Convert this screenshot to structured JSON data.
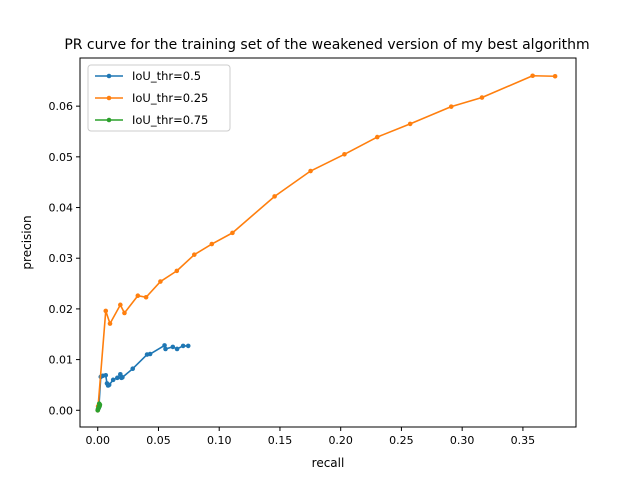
{
  "chart_data": {
    "type": "line",
    "title": "PR curve for the training set of the weakened version of my best algorithm",
    "xlabel": "recall",
    "ylabel": "precision",
    "xlim": [
      -0.0146,
      0.3937
    ],
    "ylim": [
      -0.0033,
      0.0695
    ],
    "xticks": [
      0.0,
      0.05,
      0.1,
      0.15,
      0.2,
      0.25,
      0.3,
      0.35
    ],
    "xtick_labels": [
      "0.00",
      "0.05",
      "0.10",
      "0.15",
      "0.20",
      "0.25",
      "0.30",
      "0.35"
    ],
    "yticks": [
      0.0,
      0.01,
      0.02,
      0.03,
      0.04,
      0.05,
      0.06
    ],
    "ytick_labels": [
      "0.00",
      "0.01",
      "0.02",
      "0.03",
      "0.04",
      "0.05",
      "0.06"
    ],
    "grid": false,
    "legend_position": "top-left",
    "series": [
      {
        "name": "IoU_thr=0.5",
        "color": "#1f77b4",
        "marker": "dot",
        "x": [
          0.0,
          0.0003,
          0.0009,
          0.0025,
          0.0042,
          0.0066,
          0.0076,
          0.0085,
          0.0094,
          0.0127,
          0.0161,
          0.0186,
          0.0195,
          0.0203,
          0.0288,
          0.0406,
          0.0431,
          0.055,
          0.0558,
          0.0618,
          0.0653,
          0.0703,
          0.0745
        ],
        "y": [
          0.0,
          0.0003,
          0.0005,
          0.0066,
          0.0068,
          0.0069,
          0.0053,
          0.0049,
          0.005,
          0.006,
          0.0064,
          0.0071,
          0.0064,
          0.0065,
          0.0082,
          0.011,
          0.0111,
          0.0128,
          0.0121,
          0.0125,
          0.0121,
          0.0127,
          0.0127
        ]
      },
      {
        "name": "IoU_thr=0.25",
        "color": "#ff7f0e",
        "marker": "dot",
        "x": [
          0.0,
          0.0003,
          0.0066,
          0.0101,
          0.0186,
          0.022,
          0.033,
          0.0398,
          0.0516,
          0.0651,
          0.0795,
          0.0939,
          0.1109,
          0.1456,
          0.1752,
          0.2031,
          0.2301,
          0.2572,
          0.291,
          0.3163,
          0.358,
          0.3765
        ],
        "y": [
          0.0,
          0.0008,
          0.0196,
          0.0171,
          0.0208,
          0.0192,
          0.0226,
          0.0223,
          0.0254,
          0.0275,
          0.0307,
          0.0328,
          0.035,
          0.0422,
          0.0472,
          0.0505,
          0.0539,
          0.0565,
          0.0599,
          0.0617,
          0.066,
          0.0659
        ]
      },
      {
        "name": "IoU_thr=0.75",
        "color": "#2ca02c",
        "marker": "dot",
        "x": [
          0.0,
          0.0003,
          0.0006,
          0.0009,
          0.0012,
          0.0015,
          0.0018
        ],
        "y": [
          0.0,
          0.0002,
          0.0004,
          0.0007,
          0.0013,
          0.0008,
          0.0011
        ]
      }
    ]
  }
}
